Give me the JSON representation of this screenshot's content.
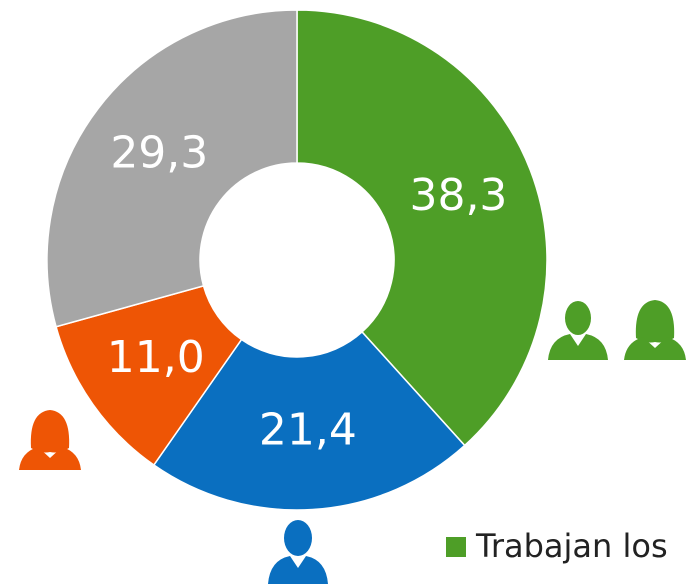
{
  "chart_data": {
    "type": "donut",
    "values": [
      38.3,
      21.4,
      11.0,
      29.3
    ],
    "value_labels": [
      "38,3",
      "21,4",
      "11,0",
      "29,3"
    ],
    "colors": [
      "#4e9e27",
      "#0a6fc0",
      "#ee5505",
      "#a6a6a6"
    ],
    "legend": {
      "labels": [
        "Trabajan los"
      ]
    }
  }
}
